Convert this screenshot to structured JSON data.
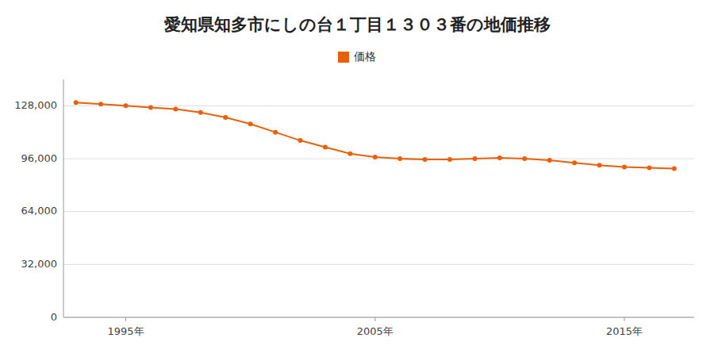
{
  "chart_data": {
    "type": "line",
    "title": "愛知県知多市にしの台１丁目１３０３番の地価推移",
    "x": [
      1993,
      1994,
      1995,
      1996,
      1997,
      1998,
      1999,
      2000,
      2001,
      2002,
      2003,
      2004,
      2005,
      2006,
      2007,
      2008,
      2009,
      2010,
      2011,
      2012,
      2013,
      2014,
      2015,
      2016,
      2017
    ],
    "series": [
      {
        "name": "価格",
        "color": "#e8600a",
        "values": [
          130000,
          129000,
          128000,
          127000,
          126000,
          124000,
          121000,
          117000,
          112000,
          107000,
          103000,
          99000,
          97000,
          96000,
          95500,
          95500,
          96000,
          96500,
          96000,
          95000,
          93500,
          92000,
          91000,
          90500,
          90000
        ]
      }
    ],
    "xlim": [
      1992.5,
      2017.8
    ],
    "xticks": [
      {
        "value": 1995,
        "label": "1995年"
      },
      {
        "value": 2005,
        "label": "2005年"
      },
      {
        "value": 2015,
        "label": "2015年"
      }
    ],
    "ylim": [
      0,
      144000
    ],
    "yticks": [
      0,
      {
        "value": 32000,
        "label": "32,000"
      },
      {
        "value": 64000,
        "label": "64,000"
      },
      {
        "value": 96000,
        "label": "96,000"
      },
      {
        "value": 128000,
        "label": "128,000"
      }
    ],
    "grid": true,
    "legend": "top",
    "marker": "circle"
  }
}
